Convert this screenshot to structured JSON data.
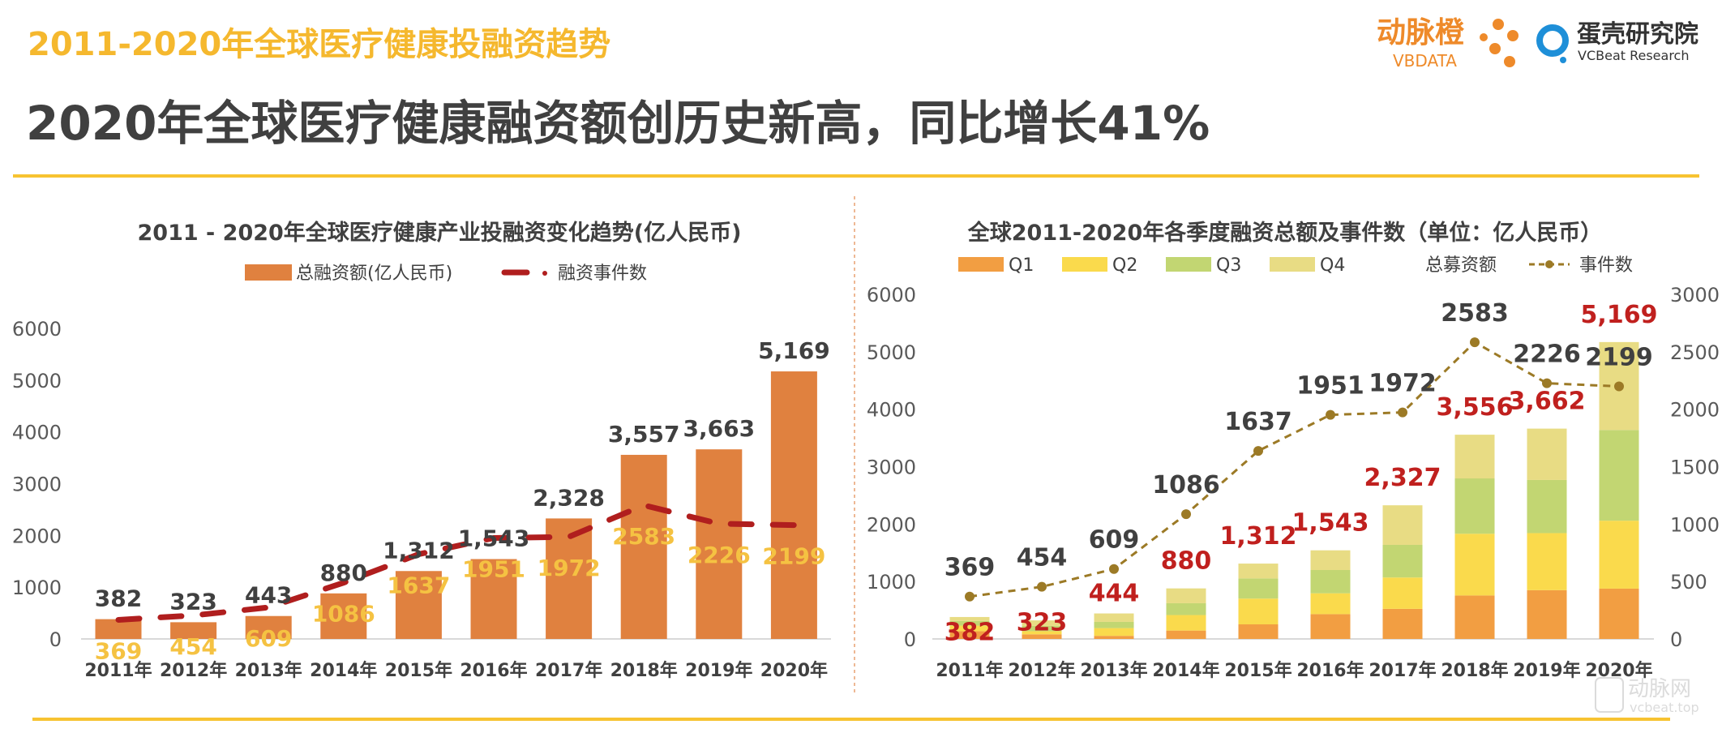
{
  "header": {
    "section_title": "2011-2020年全球医疗健康投融资趋势",
    "headline": "2020年全球医疗健康融资额创历史新高，同比增长41%",
    "logo1": {
      "name": "动脉橙",
      "sub": "VBDATA"
    },
    "logo2": {
      "name": "蛋壳研究院",
      "sub": "VCBeat Research"
    },
    "watermark": {
      "name": "动脉网",
      "sub": "vcbeat.top"
    }
  },
  "colors": {
    "section_title": "#F5B82E",
    "accent_line": "#F7C331",
    "bar": "#E0813F",
    "event_line_left": "#B01E1E",
    "event_line_right": "#9C7A26",
    "q1": "#F29E42",
    "q2": "#FADA4C",
    "q3": "#C2D672",
    "q4": "#E8DC84",
    "total_label_right": "#C0201E",
    "event_label_left": "#F5C242",
    "dark_text": "#404040"
  },
  "chart_data": [
    {
      "type": "bar",
      "title": "2011 - 2020年全球医疗健康产业投融资变化趋势(亿人民币)",
      "categories": [
        "2011年",
        "2012年",
        "2013年",
        "2014年",
        "2015年",
        "2016年",
        "2017年",
        "2018年",
        "2019年",
        "2020年"
      ],
      "yticks": [
        "0",
        "1000",
        "2000",
        "3000",
        "4000",
        "5000",
        "6000"
      ],
      "ylim": [
        0,
        6000
      ],
      "legend_placement": "top",
      "series": [
        {
          "name": "总融资额(亿人民币)",
          "type": "bar",
          "values": [
            382,
            323,
            443,
            880,
            1312,
            1543,
            2328,
            3557,
            3663,
            5169
          ],
          "labels": [
            "382",
            "323",
            "443",
            "880",
            "1,312",
            "1,543",
            "2,328",
            "3,557",
            "3,663",
            "5,169"
          ]
        },
        {
          "name": "融资事件数",
          "type": "line",
          "style": "dashed",
          "values": [
            369,
            454,
            609,
            1086,
            1637,
            1951,
            1972,
            2583,
            2226,
            2199
          ],
          "labels": [
            "369",
            "454",
            "609",
            "1086",
            "1637",
            "1951",
            "1972",
            "2583",
            "2226",
            "2199"
          ]
        }
      ]
    },
    {
      "type": "bar",
      "stacked": true,
      "title": "全球2011-2020年各季度融资总额及事件数（单位：亿人民币）",
      "categories": [
        "2011年",
        "2012年",
        "2013年",
        "2014年",
        "2015年",
        "2016年",
        "2017年",
        "2018年",
        "2019年",
        "2020年"
      ],
      "yticks": [
        "0",
        "1000",
        "2000",
        "3000",
        "4000",
        "5000",
        "6000"
      ],
      "ylim": [
        0,
        6000
      ],
      "y2ticks": [
        "0",
        "500",
        "1000",
        "1500",
        "2000",
        "2500",
        "3000"
      ],
      "y2lim": [
        0,
        3000
      ],
      "legend_placement": "top",
      "total_legend": "总募资额",
      "series": [
        {
          "name": "Q1",
          "values": [
            135,
            81,
            54,
            146,
            254,
            432,
            524,
            757,
            849,
            876
          ]
        },
        {
          "name": "Q2",
          "values": [
            97,
            54,
            135,
            270,
            449,
            363,
            546,
            1075,
            994,
            1183
          ]
        },
        {
          "name": "Q3",
          "values": [
            82,
            92,
            108,
            206,
            351,
            405,
            568,
            963,
            925,
            1579
          ]
        },
        {
          "name": "Q4",
          "values": [
            68,
            96,
            147,
            258,
            258,
            343,
            689,
            761,
            894,
            1531
          ]
        }
      ],
      "totals": [
        382,
        323,
        444,
        880,
        1312,
        1543,
        2327,
        3556,
        3662,
        5169
      ],
      "total_labels": [
        "382",
        "323",
        "444",
        "880",
        "1,312",
        "1,543",
        "2,327",
        "3,556",
        "3,662",
        "5,169"
      ],
      "events": {
        "name": "事件数",
        "axis": "secondary",
        "style": "dashed",
        "values": [
          369,
          454,
          609,
          1086,
          1637,
          1951,
          1972,
          2583,
          2226,
          2199
        ],
        "labels": [
          "369",
          "454",
          "609",
          "1086",
          "1637",
          "1951",
          "1972",
          "2583",
          "2226",
          "2199"
        ]
      }
    }
  ]
}
